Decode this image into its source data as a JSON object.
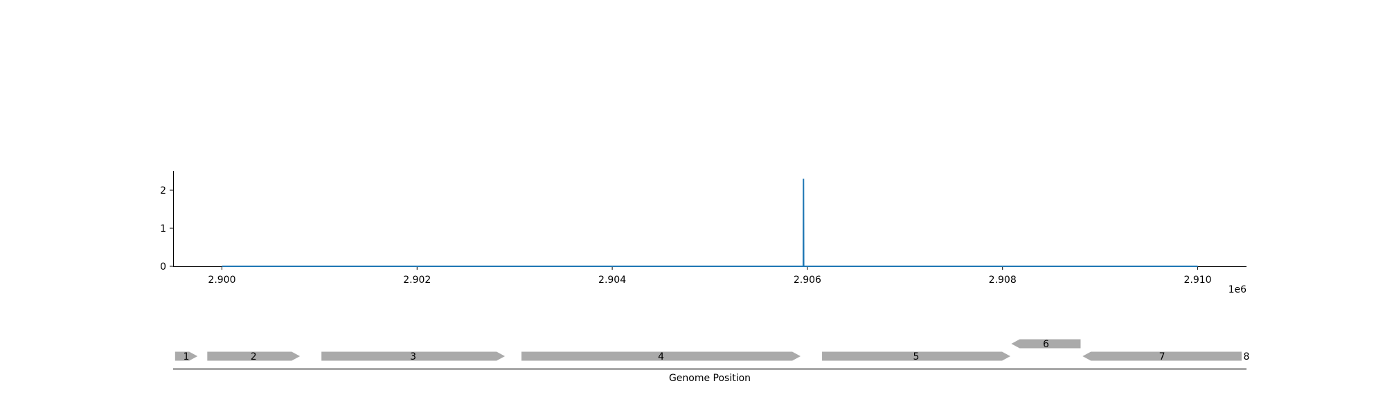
{
  "chart_data": [
    {
      "type": "line",
      "x_min": 2900000,
      "x_max": 2910000,
      "xlim": [
        2899500,
        2910500
      ],
      "ylim": [
        0,
        2.5
      ],
      "x_ticks": [
        2900000,
        2902000,
        2904000,
        2906000,
        2908000,
        2910000
      ],
      "x_tick_labels": [
        "2.900",
        "2.902",
        "2.904",
        "2.906",
        "2.908",
        "2.910"
      ],
      "y_ticks": [
        0,
        1,
        2
      ],
      "y_tick_labels": [
        "0",
        "1",
        "2"
      ],
      "offset_label": "1e6",
      "baseline": 0,
      "peaks": [
        {
          "x": 2905960,
          "y": 2.3
        }
      ],
      "line_color": "#1f77b4",
      "grid": false
    },
    {
      "type": "gene_map",
      "xlabel": "Genome Position",
      "feature_color": "#aaaaaa",
      "genes": [
        {
          "label": "1",
          "start": 2899520,
          "end": 2899750,
          "strand": "+",
          "track": 0
        },
        {
          "label": "2",
          "start": 2899850,
          "end": 2900800,
          "strand": "+",
          "track": 0
        },
        {
          "label": "3",
          "start": 2901020,
          "end": 2902900,
          "strand": "+",
          "track": 0
        },
        {
          "label": "4",
          "start": 2903070,
          "end": 2905930,
          "strand": "+",
          "track": 0
        },
        {
          "label": "5",
          "start": 2906150,
          "end": 2908080,
          "strand": "+",
          "track": 0
        },
        {
          "label": "6",
          "start": 2908090,
          "end": 2908800,
          "strand": "-",
          "track": 1
        },
        {
          "label": "7",
          "start": 2908820,
          "end": 2910450,
          "strand": "-",
          "track": 0
        },
        {
          "label": "8",
          "start": 2910500,
          "end": 2910500,
          "strand": "+",
          "track": 0
        }
      ]
    }
  ]
}
